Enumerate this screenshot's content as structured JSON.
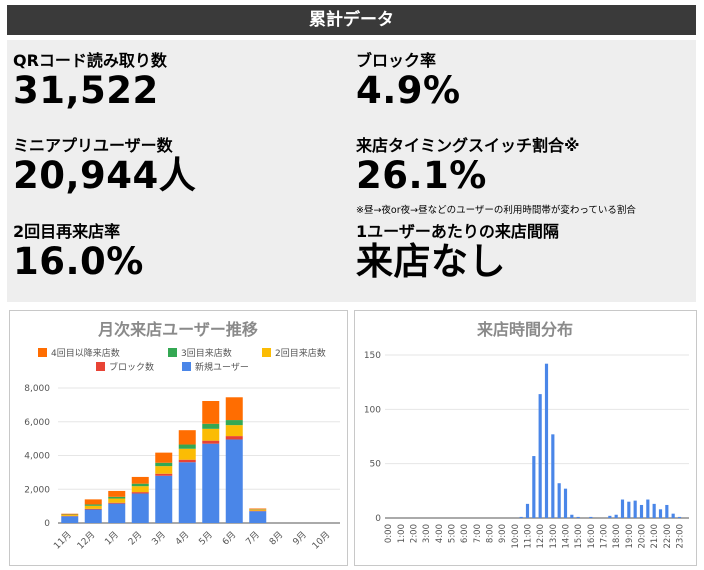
{
  "header": {
    "title": "累計データ"
  },
  "metrics": {
    "qr_reads": {
      "label": "QRコード読み取り数",
      "value": "31,522"
    },
    "block_rate": {
      "label": "ブロック率",
      "value": "4.9%"
    },
    "mini_app_users": {
      "label": "ミニアプリユーザー数",
      "value": "20,944人"
    },
    "timing_switch": {
      "label": "来店タイミングスイッチ割合※",
      "value": "26.1%",
      "note": "※昼→夜or夜→昼などのユーザーの利用時間帯が変わっている割合"
    },
    "revisit_rate": {
      "label": "2回目再来店率",
      "value": "16.0%"
    },
    "visit_interval": {
      "label": "1ユーザーあたりの来店間隔",
      "value": "来店なし"
    }
  },
  "chart_data": [
    {
      "type": "bar",
      "stacked": true,
      "title": "月次来店ユーザー推移",
      "categories": [
        "11月",
        "12月",
        "1月",
        "2月",
        "3月",
        "4月",
        "5月",
        "6月",
        "7月",
        "8月",
        "9月",
        "10月"
      ],
      "ylim": [
        0,
        8000
      ],
      "yticks": [
        "0",
        "2,000",
        "4,000",
        "6,000",
        "8,000"
      ],
      "legend_position": "top",
      "series": [
        {
          "name": "新規ユーザー",
          "color": "#4a86e8",
          "values": [
            400,
            800,
            1150,
            1750,
            2800,
            3600,
            4700,
            4950,
            700,
            0,
            0,
            0
          ]
        },
        {
          "name": "ブロック数",
          "color": "#e84335",
          "values": [
            20,
            40,
            50,
            80,
            120,
            150,
            180,
            200,
            30,
            0,
            0,
            0
          ]
        },
        {
          "name": "2回目来店数",
          "color": "#fbbc04",
          "values": [
            60,
            180,
            250,
            350,
            450,
            650,
            700,
            650,
            60,
            0,
            0,
            0
          ]
        },
        {
          "name": "3回目来店数",
          "color": "#34a853",
          "values": [
            20,
            80,
            100,
            150,
            200,
            250,
            300,
            300,
            20,
            0,
            0,
            0
          ]
        },
        {
          "name": "4回目以降来店数",
          "color": "#ff6d01",
          "values": [
            50,
            300,
            350,
            400,
            600,
            850,
            1350,
            1350,
            50,
            0,
            0,
            0
          ]
        }
      ],
      "legend": [
        {
          "name": "4回目以降来店数",
          "color": "#ff6d01"
        },
        {
          "name": "3回目来店数",
          "color": "#34a853"
        },
        {
          "name": "2回目来店数",
          "color": "#fbbc04"
        },
        {
          "name": "ブロック数",
          "color": "#e84335"
        },
        {
          "name": "新規ユーザー",
          "color": "#4a86e8"
        }
      ]
    },
    {
      "type": "bar",
      "title": "来店時間分布",
      "color": "#4a86e8",
      "ylim": [
        0,
        150
      ],
      "yticks": [
        "0",
        "50",
        "100",
        "150"
      ],
      "xtick_labels": [
        "0:00",
        "1:00",
        "2:00",
        "3:00",
        "4:00",
        "5:00",
        "6:00",
        "7:00",
        "8:00",
        "9:00",
        "10:00",
        "11:00",
        "12:00",
        "13:00",
        "14:00",
        "15:00",
        "16:00",
        "17:00",
        "18:00",
        "19:00",
        "20:00",
        "21:00",
        "22:00",
        "23:00"
      ],
      "bin_minutes": 30,
      "values": [
        0,
        0,
        0,
        0,
        0,
        0,
        0,
        0,
        0,
        0,
        0,
        0,
        0,
        0,
        0,
        0,
        0,
        0,
        0,
        0,
        0,
        1,
        13,
        57,
        114,
        142,
        77,
        32,
        27,
        3,
        1,
        0,
        1,
        0,
        0,
        2,
        3,
        17,
        15,
        16,
        12,
        17,
        13,
        8,
        12,
        4,
        1,
        0
      ]
    }
  ]
}
